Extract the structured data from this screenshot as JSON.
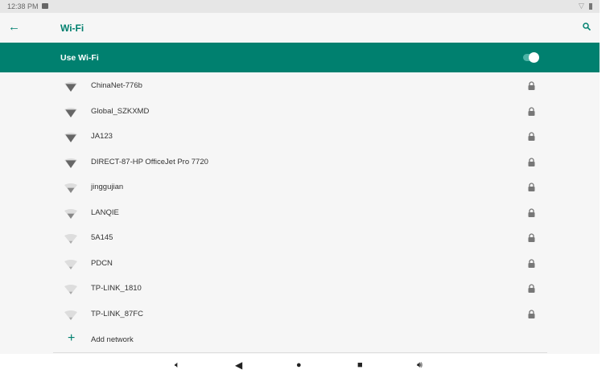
{
  "status_bar": {
    "time": "12:38 PM",
    "icons": [
      "image-icon",
      "wifi-outline-icon",
      "battery-icon"
    ]
  },
  "header": {
    "title": "Wi-Fi",
    "back_icon": "arrow-left-icon",
    "search_icon": "search-icon"
  },
  "use_wifi": {
    "label": "Use Wi-Fi",
    "enabled": true
  },
  "colors": {
    "accent": "#00806f",
    "background": "#f6f6f6"
  },
  "networks": [
    {
      "ssid": "ChinaNet-776b",
      "secured": true,
      "signal": 3
    },
    {
      "ssid": "Global_SZKXMD",
      "secured": true,
      "signal": 3
    },
    {
      "ssid": "JA123",
      "secured": true,
      "signal": 3
    },
    {
      "ssid": "DIRECT-87-HP OfficeJet Pro 7720",
      "secured": true,
      "signal": 3
    },
    {
      "ssid": "jinggujian",
      "secured": true,
      "signal": 2
    },
    {
      "ssid": "LANQIE",
      "secured": true,
      "signal": 2
    },
    {
      "ssid": "5A145",
      "secured": true,
      "signal": 1
    },
    {
      "ssid": "PDCN",
      "secured": true,
      "signal": 1
    },
    {
      "ssid": "TP-LINK_1810",
      "secured": true,
      "signal": 1
    },
    {
      "ssid": "TP-LINK_87FC",
      "secured": true,
      "signal": 1
    }
  ],
  "add_network": {
    "label": "Add network"
  },
  "nav_bar": {
    "buttons": [
      "volume-down-icon",
      "back-icon",
      "home-icon",
      "recents-icon",
      "volume-up-icon"
    ]
  }
}
